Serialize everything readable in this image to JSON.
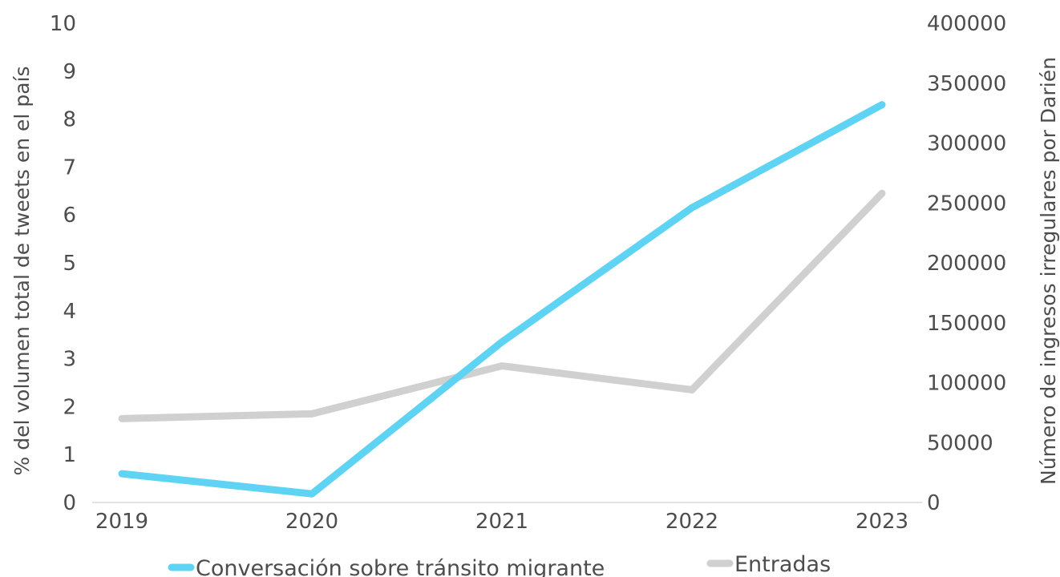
{
  "chart_data": {
    "type": "line",
    "categories": [
      "2019",
      "2020",
      "2021",
      "2022",
      "2023"
    ],
    "series": [
      {
        "name": "Conversación sobre tránsito migrante",
        "axis": "left",
        "color": "#5fd3f3",
        "values": [
          0.6,
          0.18,
          3.35,
          6.15,
          8.3
        ]
      },
      {
        "name": "Entradas",
        "axis": "right",
        "color": "#d0d0d0",
        "values": [
          70000,
          74000,
          114000,
          94000,
          258000
        ]
      }
    ],
    "ylabel_left": "% del volumen total de tweets en el país",
    "ylabel_right": "Número de ingresos irregulares por Darién",
    "ylim_left": [
      0,
      10
    ],
    "ylim_right": [
      0,
      400000
    ],
    "yticks_left": [
      "0",
      "1",
      "2",
      "3",
      "4",
      "5",
      "6",
      "7",
      "8",
      "9",
      "10"
    ],
    "yticks_right": [
      "0",
      "50000",
      "100000",
      "150000",
      "200000",
      "250000",
      "300000",
      "350000",
      "400000"
    ],
    "grid": false,
    "legend_position": "bottom"
  }
}
